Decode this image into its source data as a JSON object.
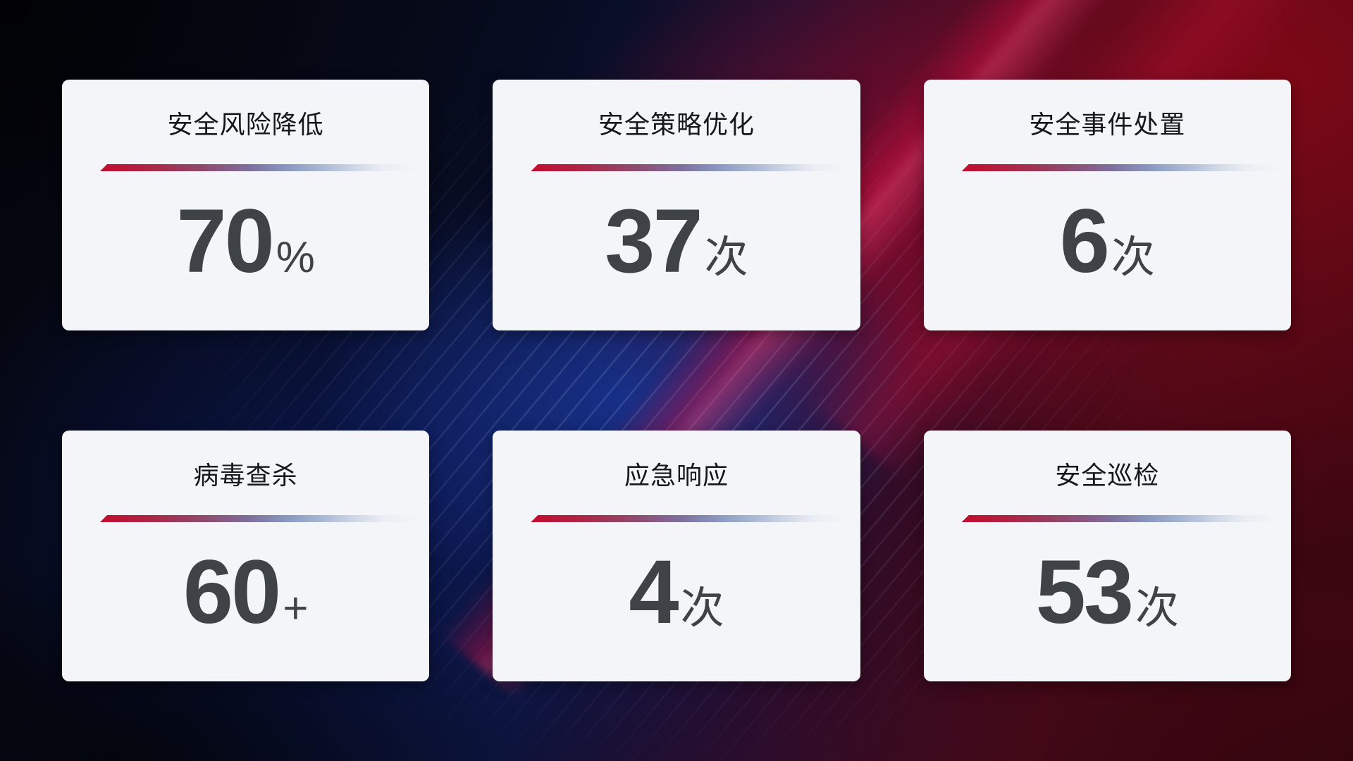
{
  "cards": [
    {
      "title": "安全风险降低",
      "value": "70",
      "suffix": "%"
    },
    {
      "title": "安全策略优化",
      "value": "37",
      "suffix": "次"
    },
    {
      "title": "安全事件处置",
      "value": "6",
      "suffix": "次"
    },
    {
      "title": "病毒查杀",
      "value": "60",
      "suffix": "+"
    },
    {
      "title": "应急响应",
      "value": "4",
      "suffix": "次"
    },
    {
      "title": "安全巡检",
      "value": "53",
      "suffix": "次"
    }
  ],
  "colors": {
    "card_background": "#f4f5f9",
    "title_text": "#16171b",
    "value_text": "#3f4247",
    "divider_start_red": "#c30d2f",
    "divider_mid_purple": "#7d6f9c",
    "divider_end_blue_grey": "#b0bed8",
    "background_navy": "#0b1236",
    "background_blue_glow": "#224acd",
    "background_crimson": "#800816"
  }
}
